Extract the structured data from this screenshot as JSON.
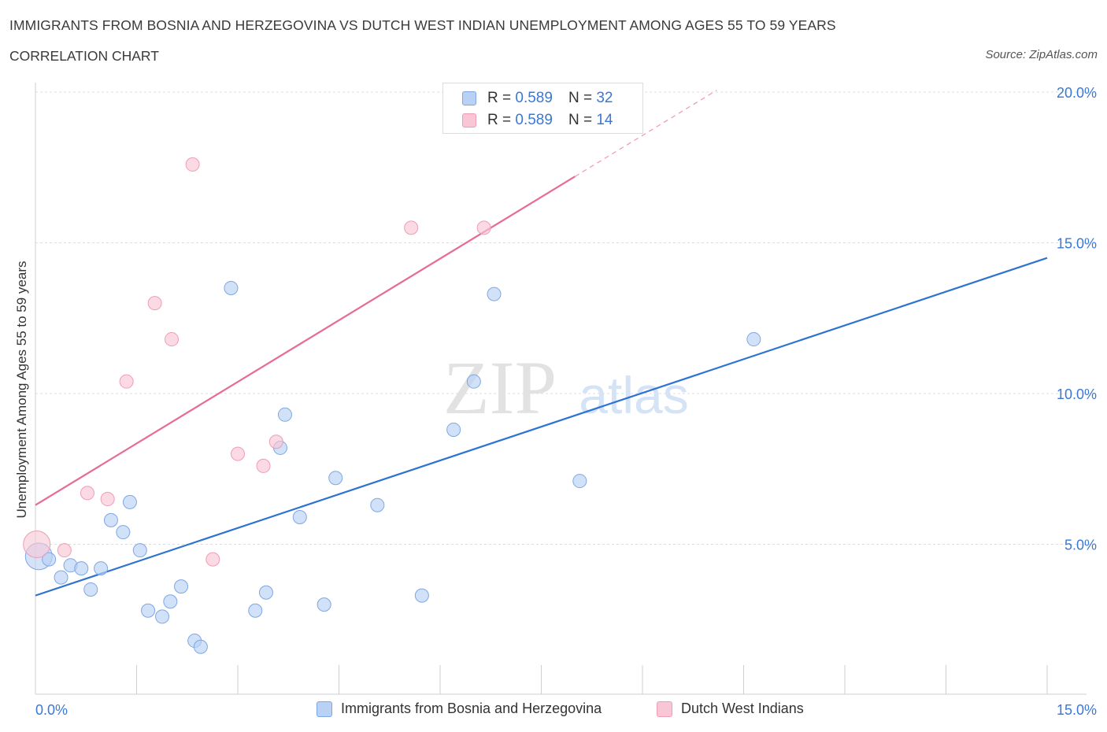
{
  "header": {
    "title": "IMMIGRANTS FROM BOSNIA AND HERZEGOVINA VS DUTCH WEST INDIAN UNEMPLOYMENT AMONG AGES 55 TO 59 YEARS",
    "subtitle": "CORRELATION CHART",
    "source": "Source: ZipAtlas.com"
  },
  "watermark": {
    "zip": "ZIP",
    "atlas": "atlas"
  },
  "legend": {
    "rows": [
      {
        "r_label": "R =",
        "r_value": "0.589",
        "n_label": "N =",
        "n_value": "32",
        "color": "#b9d1f5"
      },
      {
        "r_label": "R =",
        "r_value": "0.589",
        "n_label": "N =",
        "n_value": "14",
        "color": "#f9c6d6"
      }
    ]
  },
  "bottom_legend": [
    {
      "label": "Immigrants from Bosnia and Herzegovina",
      "color": "#b9d1f5"
    },
    {
      "label": "Dutch West Indians",
      "color": "#f9c6d6"
    }
  ],
  "colors": {
    "blue_fill": "#b9d1f5",
    "blue_stroke": "#7ea7e6",
    "blue_line": "#2e72d2",
    "pink_fill": "#f9c6d6",
    "pink_stroke": "#ee9db7",
    "pink_line": "#e66b95",
    "tick_text": "#3a78d4",
    "grid": "#dddddd"
  },
  "chart_data": {
    "type": "scatter",
    "title": "IMMIGRANTS FROM BOSNIA AND HERZEGOVINA VS DUTCH WEST INDIAN UNEMPLOYMENT AMONG AGES 55 TO 59 YEARS",
    "xlabel": "",
    "ylabel": "Unemployment Among Ages 55 to 59 years",
    "xlim": [
      0,
      15
    ],
    "ylim": [
      0,
      20
    ],
    "x_tick_labels": [
      "0.0%",
      "15.0%"
    ],
    "y_ticks": [
      5,
      10,
      15,
      20
    ],
    "y_tick_labels": [
      "5.0%",
      "10.0%",
      "15.0%",
      "20.0%"
    ],
    "grid": true,
    "series": [
      {
        "name": "Immigrants from Bosnia and Herzegovina",
        "R": 0.589,
        "N": 32,
        "points": [
          {
            "x": 0.05,
            "y": 4.6,
            "big": true
          },
          {
            "x": 0.2,
            "y": 4.5
          },
          {
            "x": 0.38,
            "y": 3.9
          },
          {
            "x": 0.52,
            "y": 4.3
          },
          {
            "x": 0.68,
            "y": 4.2
          },
          {
            "x": 0.82,
            "y": 3.5
          },
          {
            "x": 0.97,
            "y": 4.2
          },
          {
            "x": 1.12,
            "y": 5.8
          },
          {
            "x": 1.3,
            "y": 5.4
          },
          {
            "x": 1.4,
            "y": 6.4
          },
          {
            "x": 1.55,
            "y": 4.8
          },
          {
            "x": 1.67,
            "y": 2.8
          },
          {
            "x": 1.88,
            "y": 2.6
          },
          {
            "x": 2.0,
            "y": 3.1
          },
          {
            "x": 2.16,
            "y": 3.6
          },
          {
            "x": 2.36,
            "y": 1.8
          },
          {
            "x": 2.45,
            "y": 1.6
          },
          {
            "x": 2.9,
            "y": 13.5
          },
          {
            "x": 3.26,
            "y": 2.8
          },
          {
            "x": 3.42,
            "y": 3.4
          },
          {
            "x": 3.63,
            "y": 8.2
          },
          {
            "x": 3.7,
            "y": 9.3
          },
          {
            "x": 3.92,
            "y": 5.9
          },
          {
            "x": 4.28,
            "y": 3.0
          },
          {
            "x": 4.45,
            "y": 7.2
          },
          {
            "x": 5.07,
            "y": 6.3
          },
          {
            "x": 5.73,
            "y": 3.3
          },
          {
            "x": 6.2,
            "y": 8.8
          },
          {
            "x": 6.5,
            "y": 10.4
          },
          {
            "x": 6.8,
            "y": 13.3
          },
          {
            "x": 8.07,
            "y": 7.1
          },
          {
            "x": 10.65,
            "y": 11.8
          }
        ],
        "trend": {
          "x1": 0,
          "y1": 3.3,
          "x2": 15,
          "y2": 14.5
        }
      },
      {
        "name": "Dutch West Indians",
        "R": 0.589,
        "N": 14,
        "points": [
          {
            "x": 0.02,
            "y": 5.0,
            "big": true
          },
          {
            "x": 0.43,
            "y": 4.8
          },
          {
            "x": 0.77,
            "y": 6.7
          },
          {
            "x": 1.07,
            "y": 6.5
          },
          {
            "x": 1.35,
            "y": 10.4
          },
          {
            "x": 1.77,
            "y": 13.0
          },
          {
            "x": 2.02,
            "y": 11.8
          },
          {
            "x": 2.33,
            "y": 17.6
          },
          {
            "x": 2.63,
            "y": 4.5
          },
          {
            "x": 3.0,
            "y": 8.0
          },
          {
            "x": 3.38,
            "y": 7.6
          },
          {
            "x": 3.57,
            "y": 8.4
          },
          {
            "x": 5.57,
            "y": 15.5
          },
          {
            "x": 6.65,
            "y": 15.5
          }
        ],
        "trend": {
          "x1": 0,
          "y1": 6.3,
          "x2": 8.0,
          "y2": 17.2,
          "dashed_to_x": 10.1
        }
      }
    ]
  }
}
